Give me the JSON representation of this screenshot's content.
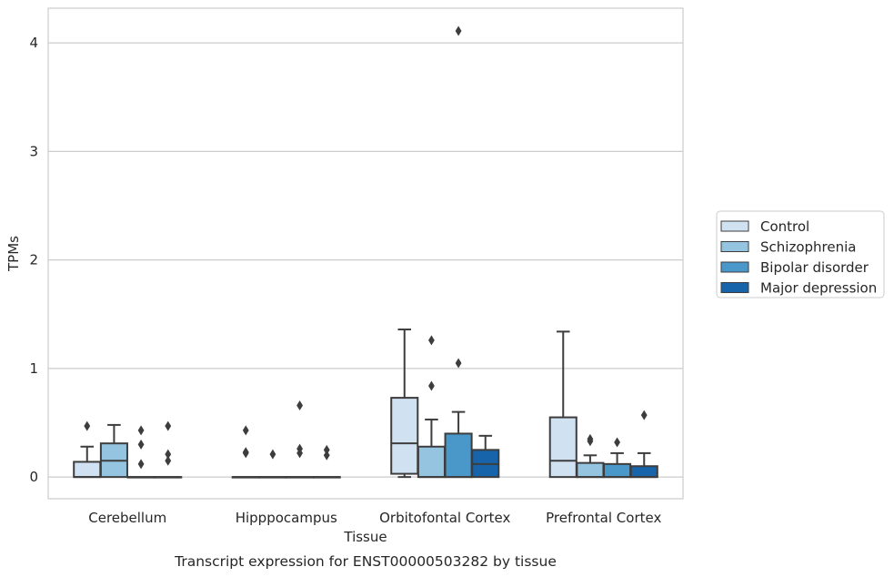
{
  "chart_data": {
    "type": "box",
    "title": "",
    "xlabel": "Tissue",
    "ylabel": "TPMs",
    "caption": "Transcript expression for ENST00000503282 by tissue",
    "ylim": [
      -0.2,
      4.32
    ],
    "yticks": [
      0,
      1,
      2,
      3,
      4
    ],
    "grid": "horizontal",
    "legend_position": "right",
    "categories": [
      "Cerebellum",
      "Hipppocampus",
      "Orbitofontal Cortex",
      "Prefrontal Cortex"
    ],
    "series": [
      {
        "name": "Control",
        "color": "#d0e1f2",
        "boxes": [
          {
            "min": 0,
            "q1": 0,
            "median": 0,
            "q3": 0.14,
            "max": 0.28,
            "outliers": [
              0.47
            ]
          },
          {
            "min": 0,
            "q1": 0,
            "median": 0,
            "q3": 0,
            "max": 0,
            "outliers": [
              0.43,
              0.23,
              0.22
            ]
          },
          {
            "min": 0,
            "q1": 0.03,
            "median": 0.31,
            "q3": 0.73,
            "max": 1.36,
            "outliers": []
          },
          {
            "min": 0,
            "q1": 0,
            "median": 0.15,
            "q3": 0.55,
            "max": 1.34,
            "outliers": []
          }
        ]
      },
      {
        "name": "Schizophrenia",
        "color": "#94c4df",
        "boxes": [
          {
            "min": 0,
            "q1": 0,
            "median": 0.15,
            "q3": 0.31,
            "max": 0.48,
            "outliers": []
          },
          {
            "min": 0,
            "q1": 0,
            "median": 0,
            "q3": 0,
            "max": 0,
            "outliers": [
              0.21
            ]
          },
          {
            "min": 0,
            "q1": 0,
            "median": 0,
            "q3": 0.28,
            "max": 0.53,
            "outliers": [
              1.26,
              0.84
            ]
          },
          {
            "min": 0,
            "q1": 0,
            "median": 0,
            "q3": 0.13,
            "max": 0.2,
            "outliers": [
              0.35,
              0.33
            ]
          }
        ]
      },
      {
        "name": "Bipolar disorder",
        "color": "#4a98c9",
        "boxes": [
          {
            "min": 0,
            "q1": 0,
            "median": 0,
            "q3": 0,
            "max": 0,
            "outliers": [
              0.43,
              0.3,
              0.12
            ]
          },
          {
            "min": 0,
            "q1": 0,
            "median": 0,
            "q3": 0,
            "max": 0,
            "outliers": [
              0.66,
              0.26,
              0.22
            ]
          },
          {
            "min": 0,
            "q1": 0,
            "median": 0,
            "q3": 0.4,
            "max": 0.6,
            "outliers": [
              4.11,
              1.05
            ]
          },
          {
            "min": 0,
            "q1": 0,
            "median": 0,
            "q3": 0.12,
            "max": 0.22,
            "outliers": [
              0.32
            ]
          }
        ]
      },
      {
        "name": "Major depression",
        "color": "#1764ab",
        "boxes": [
          {
            "min": 0,
            "q1": 0,
            "median": 0,
            "q3": 0,
            "max": 0,
            "outliers": [
              0.47,
              0.21,
              0.15
            ]
          },
          {
            "min": 0,
            "q1": 0,
            "median": 0,
            "q3": 0,
            "max": 0,
            "outliers": [
              0.25,
              0.2
            ]
          },
          {
            "min": 0,
            "q1": 0,
            "median": 0.12,
            "q3": 0.25,
            "max": 0.38,
            "outliers": []
          },
          {
            "min": 0,
            "q1": 0,
            "median": 0,
            "q3": 0.1,
            "max": 0.22,
            "outliers": [
              0.57
            ]
          }
        ]
      }
    ]
  }
}
